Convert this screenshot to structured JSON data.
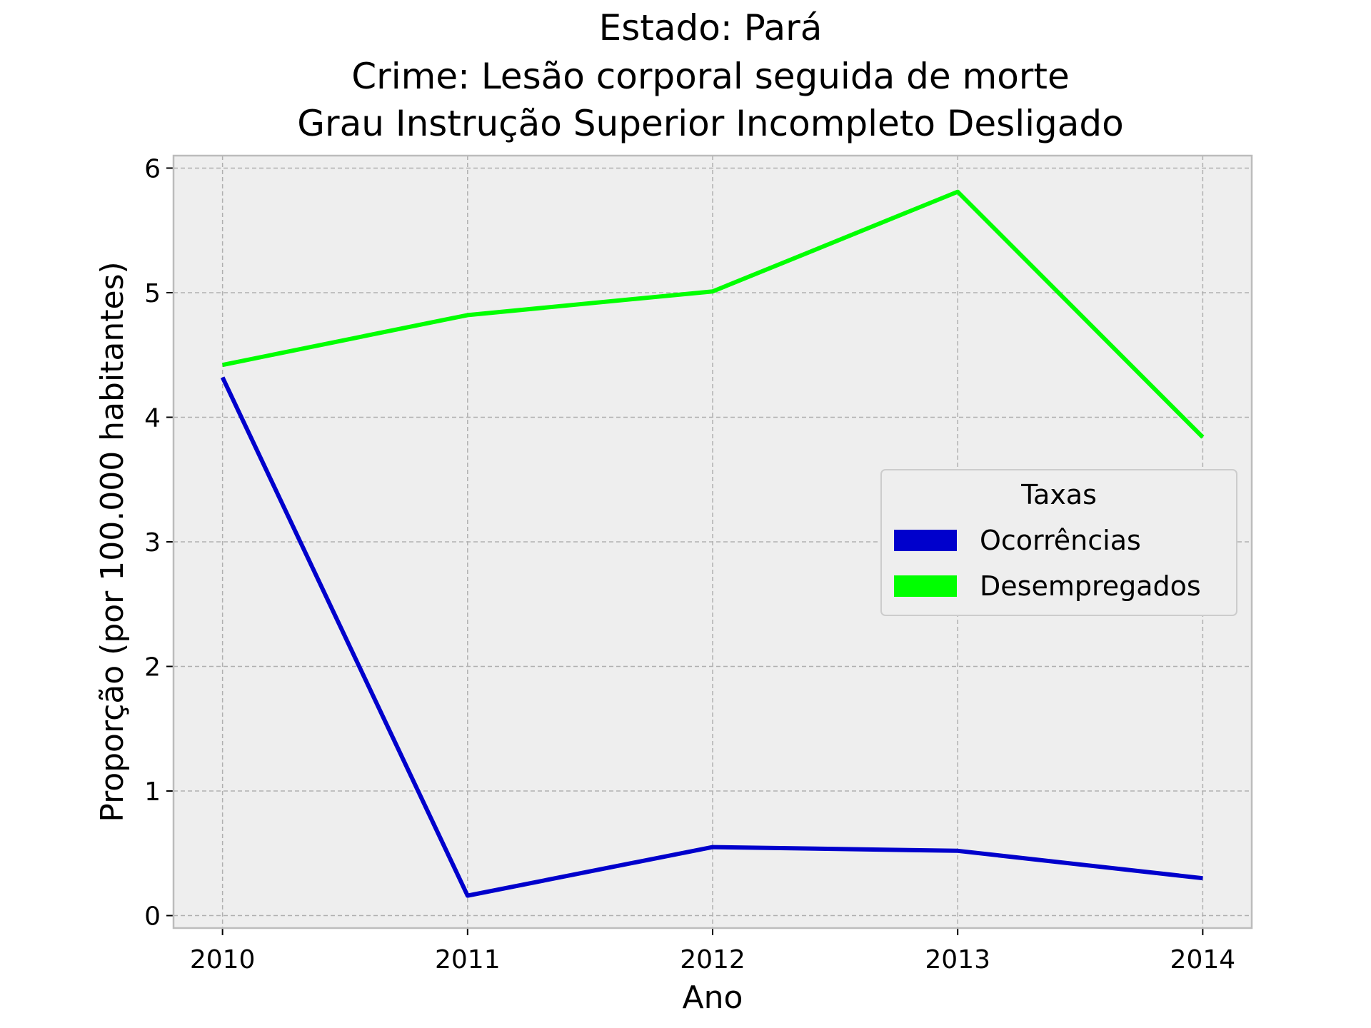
{
  "chart_data": {
    "type": "line",
    "title": [
      "Estado: Pará",
      "Crime: Lesão corporal seguida de morte",
      "Grau Instrução  Superior Incompleto   Desligado"
    ],
    "xlabel": "Ano",
    "ylabel": "Proporção (por 100.000 habitantes)",
    "x": [
      "2010",
      "2011",
      "2012",
      "2013",
      "2014"
    ],
    "xlim": [
      2009.8,
      2014.2
    ],
    "ylim": [
      -0.1,
      6.1
    ],
    "yticks": [
      0,
      1,
      2,
      3,
      4,
      5,
      6
    ],
    "grid": true,
    "legend": {
      "title": "Taxas",
      "position": "center-right"
    },
    "series": [
      {
        "name": "Ocorrências",
        "color": "#0000cc",
        "values": [
          4.32,
          0.16,
          0.55,
          0.52,
          0.3
        ]
      },
      {
        "name": "Desempregados",
        "color": "#00ff00",
        "values": [
          4.42,
          4.82,
          5.01,
          5.81,
          3.84
        ]
      }
    ]
  },
  "colors": {
    "plot_background": "#eeeeee",
    "grid": "#b0b0b0",
    "frame": "#bcbcbc"
  }
}
